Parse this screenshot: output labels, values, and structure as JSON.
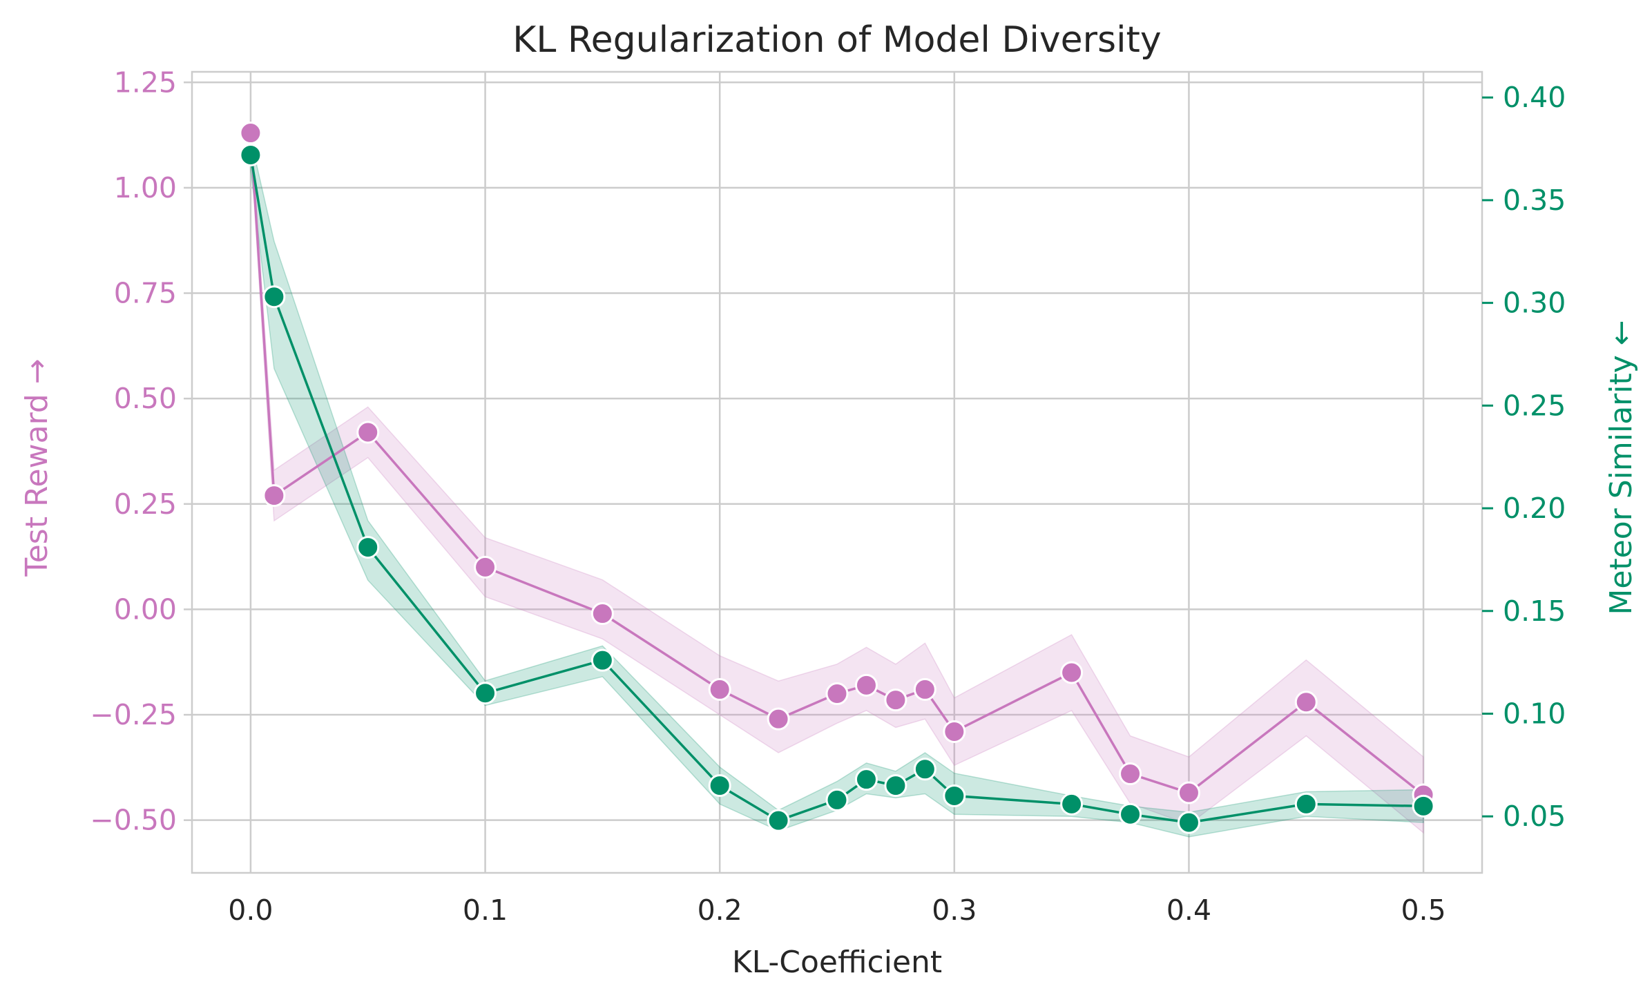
{
  "chart_data": {
    "type": "line",
    "title": "KL Regularization of Model Diversity",
    "xlabel": "KL-Coefficient",
    "ylabel_left": "Test Reward →",
    "ylabel_right": "Meteor Similarity ←",
    "x_ticks": [
      "0.0",
      "0.1",
      "0.2",
      "0.3",
      "0.4",
      "0.5"
    ],
    "y_left_ticks": [
      "−0.50",
      "−0.25",
      "0.00",
      "0.25",
      "0.50",
      "0.75",
      "1.00",
      "1.25"
    ],
    "y_right_ticks": [
      "0.05",
      "0.10",
      "0.15",
      "0.20",
      "0.25",
      "0.30",
      "0.35",
      "0.40"
    ],
    "xlim": [
      -0.025,
      0.525
    ],
    "ylim_left": [
      -0.625,
      1.275
    ],
    "ylim_right": [
      0.0225,
      0.4125
    ],
    "grid": true,
    "legend": "none",
    "x": [
      0.0,
      0.01,
      0.05,
      0.1,
      0.15,
      0.2,
      0.225,
      0.25,
      0.2625,
      0.275,
      0.2875,
      0.3,
      0.35,
      0.375,
      0.4,
      0.45,
      0.5
    ],
    "series": [
      {
        "axis": "left",
        "color": "#c877bd",
        "values": [
          1.13,
          0.27,
          0.42,
          0.1,
          -0.01,
          -0.19,
          -0.26,
          -0.2,
          -0.18,
          -0.215,
          -0.19,
          -0.29,
          -0.15,
          -0.39,
          -0.435,
          -0.22,
          -0.44
        ],
        "band_lower": [
          1.1,
          0.21,
          0.36,
          0.03,
          -0.07,
          -0.25,
          -0.34,
          -0.27,
          -0.24,
          -0.28,
          -0.26,
          -0.37,
          -0.24,
          -0.46,
          -0.51,
          -0.3,
          -0.53
        ],
        "band_upper": [
          1.16,
          0.33,
          0.48,
          0.17,
          0.07,
          -0.11,
          -0.17,
          -0.13,
          -0.09,
          -0.13,
          -0.08,
          -0.21,
          -0.06,
          -0.3,
          -0.35,
          -0.12,
          -0.35
        ]
      },
      {
        "axis": "right",
        "color": "#009068",
        "values": [
          0.372,
          0.303,
          0.181,
          0.11,
          0.126,
          0.065,
          0.048,
          0.058,
          0.068,
          0.065,
          0.073,
          0.06,
          0.056,
          0.051,
          0.047,
          0.056,
          0.055
        ],
        "band_lower": [
          0.365,
          0.268,
          0.165,
          0.104,
          0.118,
          0.056,
          0.043,
          0.053,
          0.061,
          0.059,
          0.061,
          0.051,
          0.05,
          0.047,
          0.04,
          0.05,
          0.047
        ],
        "band_upper": [
          0.38,
          0.33,
          0.194,
          0.116,
          0.133,
          0.074,
          0.053,
          0.067,
          0.076,
          0.072,
          0.081,
          0.071,
          0.06,
          0.055,
          0.052,
          0.062,
          0.063
        ]
      }
    ]
  }
}
